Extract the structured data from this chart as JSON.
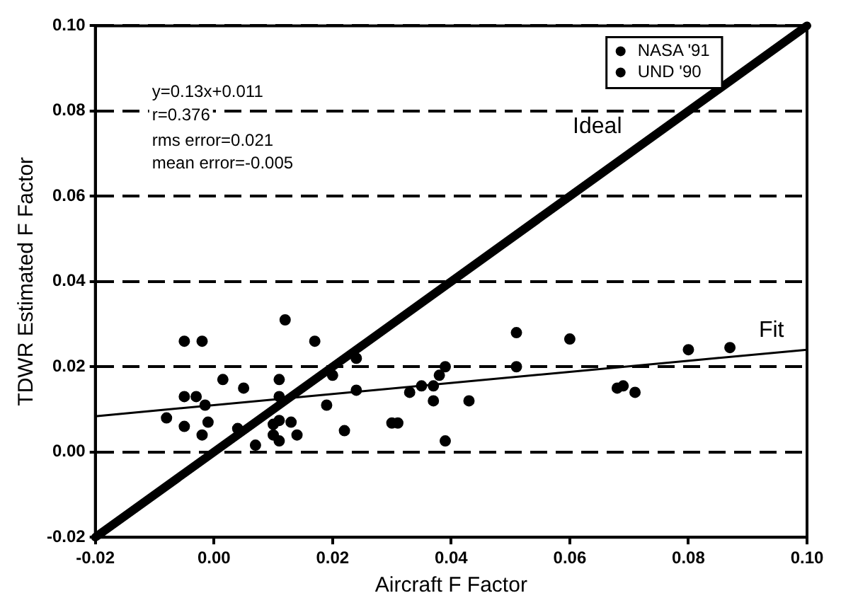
{
  "chart_data": {
    "type": "scatter",
    "xlabel": "Aircraft F Factor",
    "ylabel": "TDWR Estimated F Factor",
    "xlim": [
      -0.02,
      0.1
    ],
    "ylim": [
      -0.02,
      0.1
    ],
    "xticks": [
      {
        "value": -0.02,
        "label": "-0.02"
      },
      {
        "value": 0,
        "label": "0.00"
      },
      {
        "value": 0.02,
        "label": "0.02"
      },
      {
        "value": 0.04,
        "label": "0.04"
      },
      {
        "value": 0.06,
        "label": "0.06"
      },
      {
        "value": 0.08,
        "label": "0.08"
      },
      {
        "value": 0.1,
        "label": "0.10"
      }
    ],
    "yticks": [
      {
        "value": -0.02,
        "label": "-0.02"
      },
      {
        "value": 0,
        "label": "0.00"
      },
      {
        "value": 0.02,
        "label": "0.02"
      },
      {
        "value": 0.04,
        "label": "0.04"
      },
      {
        "value": 0.06,
        "label": "0.06"
      },
      {
        "value": 0.08,
        "label": "0.08"
      },
      {
        "value": 0.1,
        "label": "0.10"
      }
    ],
    "grid": "y",
    "legend": "top right",
    "series": [
      {
        "name": "NASA '91",
        "color": "#000000",
        "marker": "circle",
        "x": [
          0.012,
          -0.005,
          -0.002,
          0.017,
          0.0015,
          0.005,
          -0.005,
          -0.003,
          -0.0015,
          0.011,
          0.011,
          0.02,
          0.019,
          0.024,
          -0.008,
          -0.005,
          -0.001,
          -0.002,
          0.004,
          0.007,
          0.01,
          0.011,
          0.013,
          0.01,
          0.011,
          0.014,
          0.022,
          0.039,
          0.051,
          0.038,
          0.024,
          0.033,
          0.035,
          0.037,
          0.03,
          0.031,
          0.08,
          0.087
        ],
        "values": [
          0.031,
          0.026,
          0.026,
          0.026,
          0.017,
          0.015,
          0.013,
          0.013,
          0.011,
          0.017,
          0.013,
          0.018,
          0.011,
          0.022,
          0.008,
          0.006,
          0.007,
          0.004,
          0.0055,
          0.0016,
          0.0065,
          0.0074,
          0.007,
          0.004,
          0.0026,
          0.004,
          0.005,
          0.02,
          0.02,
          0.018,
          0.0145,
          0.014,
          0.0155,
          0.0155,
          0.0068,
          0.0068,
          0.024,
          0.0245
        ]
      },
      {
        "name": "UND '90",
        "color": "#000000",
        "marker": "circle",
        "x": [
          0.051,
          0.06,
          0.037,
          0.043,
          0.039,
          0.068,
          0.069,
          0.071
        ],
        "values": [
          0.028,
          0.0265,
          0.012,
          0.012,
          0.0026,
          0.015,
          0.0155,
          0.014
        ]
      },
      {
        "type": "line",
        "name": "Ideal",
        "color": "#000000",
        "x": [
          -0.02,
          0.1
        ],
        "values": [
          -0.02,
          0.1
        ]
      },
      {
        "type": "line",
        "name": "Fit",
        "color": "#000000",
        "x": [
          -0.02,
          0.1
        ],
        "values": [
          0.0084,
          0.024
        ]
      }
    ],
    "annotations": [
      "y=0.13x+0.011",
      "r=0.376",
      "rms error=0.021",
      "mean error=-0.005"
    ]
  }
}
